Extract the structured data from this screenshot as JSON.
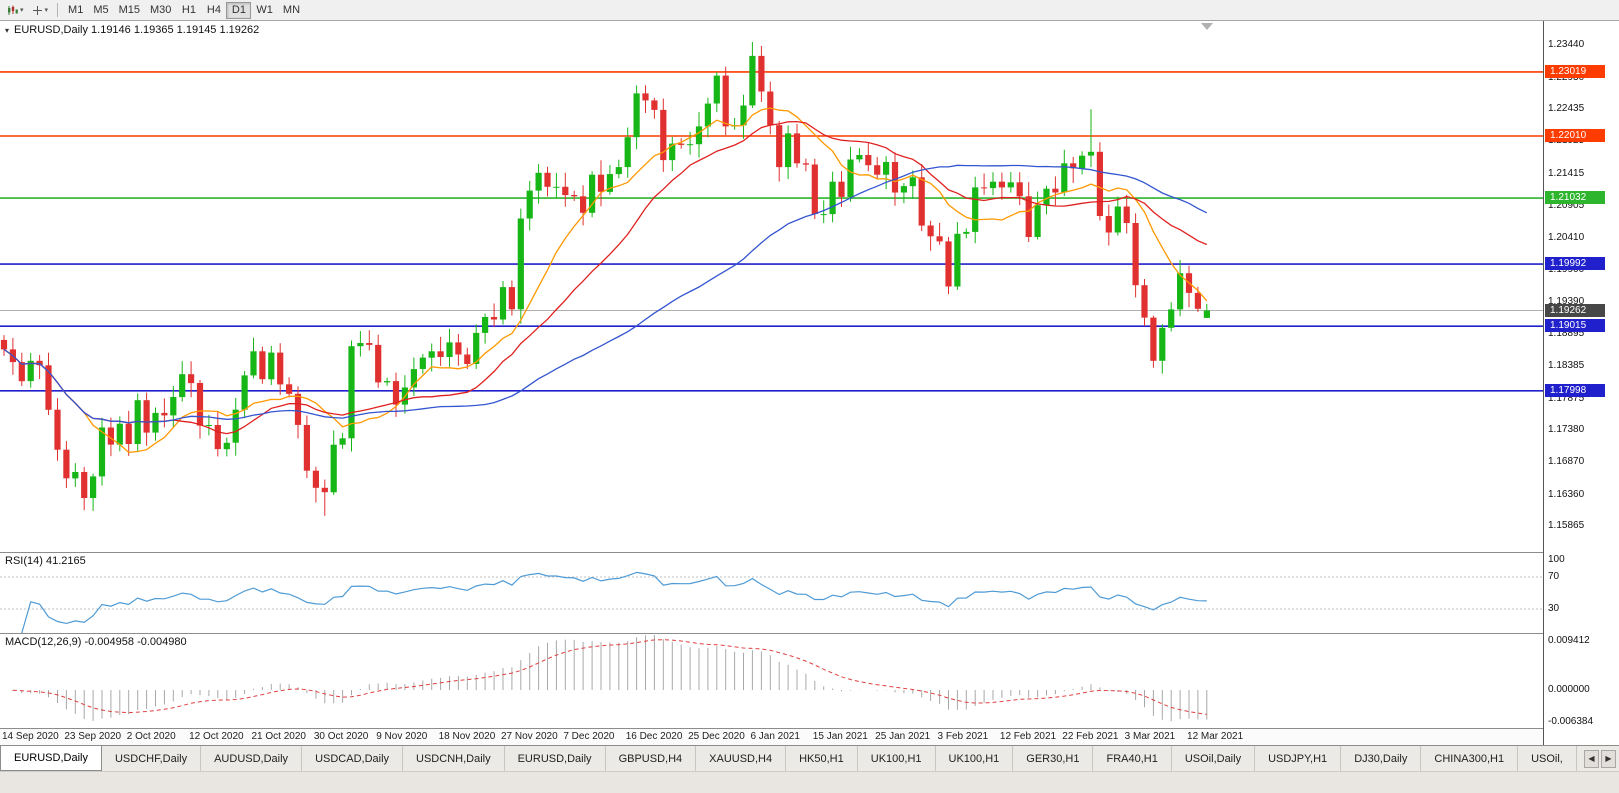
{
  "toolbar": {
    "dropdowns": [
      {
        "name": "chart-type-dropdown",
        "caret": "▾"
      },
      {
        "name": "crosshair-dropdown",
        "caret": "▾"
      }
    ],
    "timeframes": [
      {
        "label": "M1",
        "active": false
      },
      {
        "label": "M5",
        "active": false
      },
      {
        "label": "M15",
        "active": false
      },
      {
        "label": "M30",
        "active": false
      },
      {
        "label": "H1",
        "active": false
      },
      {
        "label": "H4",
        "active": false
      },
      {
        "label": "D1",
        "active": true
      },
      {
        "label": "W1",
        "active": false
      },
      {
        "label": "MN",
        "active": false
      }
    ]
  },
  "chart": {
    "header": "EURUSD,Daily 1.19146 1.19365 1.19145 1.19262",
    "menu_icon": "▾"
  },
  "chart_data": {
    "type": "candlestick",
    "symbol": "EURUSD",
    "timeframe": "Daily",
    "title": "EURUSD,Daily",
    "last_ohlc": [
      1.19146,
      1.19365,
      1.19145,
      1.19262
    ],
    "first_open": 1.188,
    "price_min": 1.1546,
    "price_max": 1.2382,
    "x0": 4,
    "x_step": 8.91,
    "closes": [
      1.1865,
      1.1845,
      1.1815,
      1.1847,
      1.184,
      1.177,
      1.1707,
      1.1662,
      1.1672,
      1.1631,
      1.1665,
      1.1742,
      1.1715,
      1.1748,
      1.1716,
      1.1785,
      1.1734,
      1.1765,
      1.1761,
      1.179,
      1.1826,
      1.1812,
      1.1745,
      1.1746,
      1.1708,
      1.1718,
      1.177,
      1.1824,
      1.1862,
      1.1818,
      1.186,
      1.181,
      1.1795,
      1.1746,
      1.1674,
      1.1647,
      1.164,
      1.1715,
      1.1725,
      1.187,
      1.1875,
      1.1872,
      1.1813,
      1.1815,
      1.1778,
      1.1805,
      1.1834,
      1.1852,
      1.1862,
      1.1853,
      1.1876,
      1.1857,
      1.1842,
      1.1891,
      1.1916,
      1.1912,
      1.1963,
      1.1928,
      1.2071,
      1.2115,
      1.2143,
      1.2121,
      1.2121,
      1.2108,
      1.2106,
      1.208,
      1.214,
      1.2113,
      1.2141,
      1.2152,
      1.2199,
      1.2268,
      1.2257,
      1.2242,
      1.2163,
      1.2189,
      1.2187,
      1.2188,
      1.2216,
      1.2252,
      1.2296,
      1.2216,
      1.2218,
      1.2249,
      1.2327,
      1.2271,
      1.2218,
      1.2152,
      1.2205,
      1.2158,
      1.2156,
      1.2078,
      1.2078,
      1.2129,
      1.2105,
      1.2164,
      1.2171,
      1.2155,
      1.214,
      1.216,
      1.2112,
      1.2122,
      1.2136,
      1.206,
      1.2043,
      1.2035,
      1.1964,
      1.2047,
      1.205,
      1.212,
      1.2119,
      1.2129,
      1.212,
      1.2128,
      1.2106,
      1.2042,
      1.2092,
      1.2118,
      1.2112,
      1.2158,
      1.215,
      1.217,
      1.2176,
      1.2075,
      1.2049,
      1.209,
      1.2064,
      1.1966,
      1.1915,
      1.1847,
      1.1899,
      1.1928,
      1.1985,
      1.1954,
      1.1929,
      1.19262
    ],
    "wick_overrides": {
      "9": [
        1.168,
        1.1612
      ],
      "36": [
        1.166,
        1.1603
      ],
      "84": [
        1.2349,
        1.2245
      ],
      "106": [
        1.2042,
        1.1952
      ],
      "122": [
        1.2243,
        1.2152
      ],
      "129": [
        1.1918,
        1.1836
      ]
    },
    "candle_up_color": "#16b616",
    "candle_down_color": "#e03030",
    "moving_averages": [
      {
        "period": 10,
        "color": "#ff9900"
      },
      {
        "period": 20,
        "color": "#e02020"
      },
      {
        "period": 50,
        "color": "#3355d0"
      }
    ],
    "hlines": [
      {
        "price": 1.23019,
        "label": "1.23019",
        "color": "#ff3c00"
      },
      {
        "price": 1.2201,
        "label": "1.22010",
        "color": "#ff3c00"
      },
      {
        "price": 1.21032,
        "label": "1.21032",
        "color": "#2db52d"
      },
      {
        "price": 1.19992,
        "label": "1.19992",
        "color": "#2020cc"
      },
      {
        "price": 1.19015,
        "label": "1.19015",
        "color": "#2020cc"
      },
      {
        "price": 1.17998,
        "label": "1.17998",
        "color": "#2020cc"
      }
    ],
    "current_price": {
      "price": 1.19262,
      "label": "1.19262",
      "line_color": "#b0b0b0",
      "badge_color": "#474747"
    },
    "y_ticks": [
      "1.23440",
      "1.22930",
      "1.22435",
      "1.21925",
      "1.21415",
      "1.20905",
      "1.20410",
      "1.19900",
      "1.19390",
      "1.18895",
      "1.18385",
      "1.17875",
      "1.17380",
      "1.16870",
      "1.16360",
      "1.15865"
    ],
    "x_labels": [
      "14 Sep 2020",
      "23 Sep 2020",
      "2 Oct 2020",
      "12 Oct 2020",
      "21 Oct 2020",
      "30 Oct 2020",
      "9 Nov 2020",
      "18 Nov 2020",
      "27 Nov 2020",
      "7 Dec 2020",
      "16 Dec 2020",
      "25 Dec 2020",
      "6 Jan 2021",
      "15 Jan 2021",
      "25 Jan 2021",
      "3 Feb 2021",
      "12 Feb 2021",
      "22 Feb 2021",
      "3 Mar 2021",
      "12 Mar 2021"
    ],
    "x_label_step": 7,
    "indicators": {
      "rsi": {
        "label": "RSI(14) 41.2165",
        "period": 14,
        "value": 41.2165,
        "levels": [
          100,
          70,
          30
        ],
        "color": "#4f9bd5"
      },
      "macd": {
        "label": "MACD(12,26,9) -0.004958 -0.004980",
        "fast": 12,
        "slow": 26,
        "signal": 9,
        "macd_value": -0.004958,
        "signal_value": -0.00498,
        "axis_max": 0.009412,
        "axis_min": -0.006384,
        "axis_labels": [
          "0.009412",
          "0.000000",
          "-0.006384"
        ],
        "bar_color": "#a8a8a8",
        "signal_color": "#e04040"
      }
    }
  },
  "tabs": {
    "items": [
      {
        "label": "EURUSD,Daily",
        "active": true
      },
      {
        "label": "USDCHF,Daily",
        "active": false
      },
      {
        "label": "AUDUSD,Daily",
        "active": false
      },
      {
        "label": "USDCAD,Daily",
        "active": false
      },
      {
        "label": "USDCNH,Daily",
        "active": false
      },
      {
        "label": "EURUSD,Daily",
        "active": false
      },
      {
        "label": "GBPUSD,H4",
        "active": false
      },
      {
        "label": "XAUUSD,H4",
        "active": false
      },
      {
        "label": "HK50,H1",
        "active": false
      },
      {
        "label": "UK100,H1",
        "active": false
      },
      {
        "label": "UK100,H1",
        "active": false
      },
      {
        "label": "GER30,H1",
        "active": false
      },
      {
        "label": "FRA40,H1",
        "active": false
      },
      {
        "label": "USOil,Daily",
        "active": false
      },
      {
        "label": "USDJPY,H1",
        "active": false
      },
      {
        "label": "DJ30,Daily",
        "active": false
      },
      {
        "label": "CHINA300,H1",
        "active": false
      },
      {
        "label": "USOil,",
        "active": false
      }
    ],
    "scroll_left": "◀",
    "scroll_right": "▶"
  }
}
